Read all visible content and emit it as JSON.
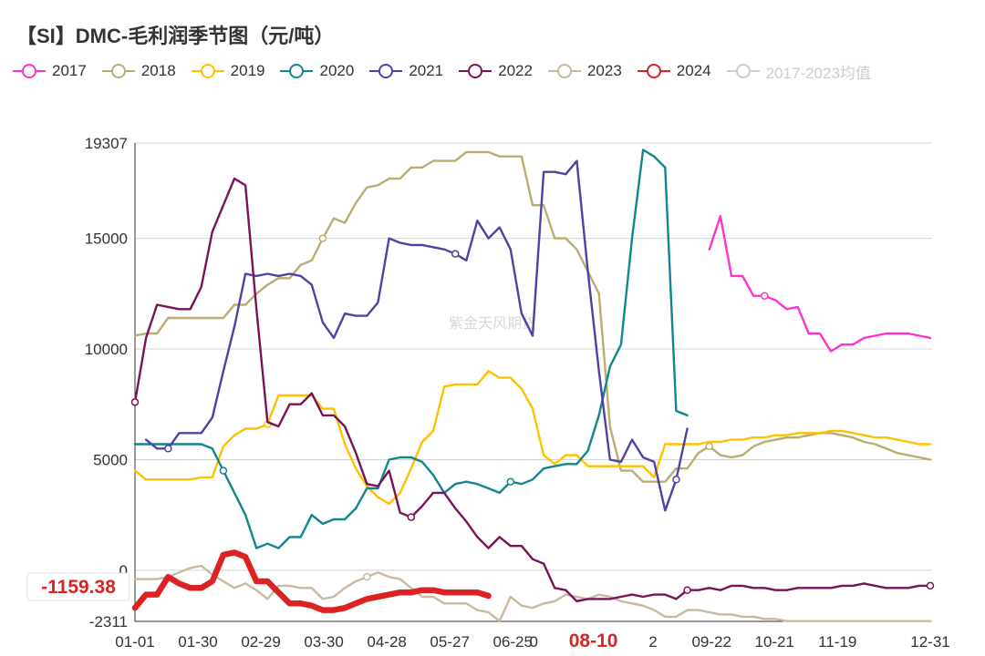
{
  "chart_data": {
    "type": "line",
    "title": "【SI】DMC-毛利润季节图（元/吨）",
    "xlabel": "",
    "ylabel": "",
    "ylim": [
      -2311,
      19307
    ],
    "y_ticks": [
      -2311,
      0,
      5000,
      10000,
      15000,
      19307
    ],
    "x_tick_labels": [
      "01-01",
      "01-30",
      "02-29",
      "03-30",
      "04-28",
      "05-27",
      "06-25",
      "0",
      "08-10",
      "2",
      "09-22",
      "10-21",
      "11-19",
      "12-31"
    ],
    "highlight_x_label": "08-10",
    "watermark": "紫金天风期货",
    "grid": true,
    "legend_position": "top",
    "current_value_label": "-1159.38",
    "series": [
      {
        "name": "2017",
        "color": "#ff33cc",
        "x": [
          52,
          53,
          54,
          55,
          56,
          57,
          58,
          59,
          60,
          61,
          62,
          63,
          64,
          65,
          66,
          67,
          68,
          69,
          70,
          71,
          72
        ],
        "values": [
          14500,
          16000,
          13300,
          13300,
          12400,
          12400,
          12200,
          11800,
          11900,
          10700,
          10700,
          9900,
          10200,
          10200,
          10500,
          10600,
          10700,
          10700,
          10700,
          10600,
          10500
        ]
      },
      {
        "name": "2018",
        "color": "#b9ae6f",
        "x": [
          0,
          1,
          2,
          3,
          4,
          5,
          6,
          7,
          8,
          9,
          10,
          11,
          12,
          13,
          14,
          15,
          16,
          17,
          18,
          19,
          20,
          21,
          22,
          23,
          24,
          25,
          26,
          27,
          28,
          29,
          30,
          31,
          32,
          33,
          34,
          35,
          36,
          37,
          38,
          39,
          40,
          41,
          42,
          43,
          44,
          45,
          46,
          47,
          48,
          49,
          50,
          51,
          52,
          53,
          54,
          55,
          56,
          57,
          58,
          59,
          60,
          61,
          62,
          63,
          64,
          65,
          66,
          67,
          68,
          69,
          70,
          71,
          72
        ],
        "values": [
          10600,
          10700,
          10700,
          11400,
          11400,
          11400,
          11400,
          11400,
          11400,
          12000,
          12000,
          12500,
          12900,
          13200,
          13200,
          13800,
          14000,
          15000,
          15900,
          15700,
          16600,
          17300,
          17400,
          17700,
          17700,
          18200,
          18200,
          18500,
          18500,
          18500,
          18900,
          18900,
          18900,
          18700,
          18700,
          18700,
          16500,
          16500,
          15000,
          15000,
          14500,
          13500,
          12500,
          6500,
          4500,
          4500,
          4000,
          4000,
          4000,
          4600,
          4600,
          5300,
          5600,
          5200,
          5100,
          5200,
          5600,
          5800,
          5900,
          6000,
          6000,
          6100,
          6200,
          6200,
          6100,
          6000,
          5800,
          5700,
          5500,
          5300,
          5200,
          5100,
          5000
        ]
      },
      {
        "name": "2019",
        "color": "#ffc000",
        "x": [
          0,
          1,
          2,
          3,
          4,
          5,
          6,
          7,
          8,
          9,
          10,
          11,
          12,
          13,
          14,
          15,
          16,
          17,
          18,
          19,
          20,
          21,
          22,
          23,
          24,
          25,
          26,
          27,
          28,
          29,
          30,
          31,
          32,
          33,
          34,
          35,
          36,
          37,
          38,
          39,
          40,
          41,
          42,
          43,
          44,
          45,
          46,
          47,
          48,
          49,
          50,
          51,
          52,
          53,
          54,
          55,
          56,
          57,
          58,
          59,
          60,
          61,
          62,
          63,
          64,
          65,
          66,
          67,
          68,
          69,
          70,
          71,
          72
        ],
        "values": [
          4500,
          4100,
          4100,
          4100,
          4100,
          4100,
          4200,
          4200,
          5600,
          6100,
          6400,
          6400,
          6600,
          7900,
          7900,
          7900,
          7900,
          7300,
          7300,
          5700,
          4600,
          3800,
          3300,
          3000,
          3500,
          4600,
          5800,
          6300,
          8300,
          8400,
          8400,
          8400,
          9000,
          8700,
          8700,
          8200,
          7300,
          5200,
          4800,
          5200,
          5200,
          4700,
          4700,
          4700,
          4700,
          4700,
          4700,
          4200,
          5700,
          5700,
          5700,
          5700,
          5800,
          5800,
          5900,
          5900,
          6000,
          6000,
          6100,
          6100,
          6200,
          6200,
          6200,
          6300,
          6300,
          6200,
          6100,
          6000,
          6000,
          5900,
          5800,
          5700,
          5700
        ]
      },
      {
        "name": "2020",
        "color": "#11868d",
        "x": [
          0,
          1,
          2,
          3,
          4,
          5,
          6,
          7,
          8,
          9,
          10,
          11,
          12,
          13,
          14,
          15,
          16,
          17,
          18,
          19,
          20,
          21,
          22,
          23,
          24,
          25,
          26,
          27,
          28,
          29,
          30,
          31,
          32,
          33,
          34,
          35,
          36,
          37,
          38,
          39,
          40,
          41,
          42,
          43,
          44,
          45,
          46,
          47,
          48,
          49,
          50
        ],
        "values": [
          5700,
          5700,
          5700,
          5700,
          5700,
          5700,
          5700,
          5500,
          4500,
          3500,
          2500,
          1000,
          1200,
          1000,
          1500,
          1500,
          2500,
          2100,
          2300,
          2300,
          2800,
          3700,
          3700,
          5000,
          5100,
          5100,
          4900,
          4300,
          3500,
          3900,
          4000,
          3900,
          3700,
          3500,
          4000,
          3900,
          4100,
          4600,
          4700,
          4800,
          4800,
          5400,
          7000,
          9200,
          10200,
          15000,
          19000,
          18700,
          18200,
          7200,
          7000
        ]
      },
      {
        "name": "2021",
        "color": "#5141a5",
        "x": [
          1,
          2,
          3,
          4,
          5,
          6,
          7,
          8,
          9,
          10,
          11,
          12,
          13,
          14,
          15,
          16,
          17,
          18,
          19,
          20,
          21,
          22,
          23,
          24,
          25,
          26,
          27,
          28,
          29,
          30,
          31,
          32,
          33,
          34,
          35,
          36,
          37,
          38,
          39,
          40,
          41,
          42,
          43,
          44,
          45,
          46,
          47,
          48,
          49,
          50
        ],
        "values": [
          5900,
          5500,
          5500,
          6200,
          6200,
          6200,
          6900,
          9000,
          11000,
          13400,
          13300,
          13400,
          13300,
          13400,
          13300,
          12900,
          11200,
          10500,
          11600,
          11500,
          11500,
          12100,
          15000,
          14800,
          14700,
          14700,
          14600,
          14500,
          14300,
          14000,
          15800,
          15000,
          15500,
          14500,
          11600,
          10600,
          18000,
          18000,
          17900,
          18500,
          13500,
          9000,
          5000,
          4900,
          5900,
          5100,
          4900,
          2700,
          4100,
          6400
        ]
      },
      {
        "name": "2022",
        "color": "#7a1257",
        "x": [
          0,
          1,
          2,
          3,
          4,
          5,
          6,
          7,
          8,
          9,
          10,
          11,
          12,
          13,
          14,
          15,
          16,
          17,
          18,
          19,
          20,
          21,
          22,
          23,
          24,
          25,
          26,
          27,
          28,
          29,
          30,
          31,
          32,
          33,
          34,
          35,
          36,
          37,
          38,
          39,
          40,
          41,
          42,
          43,
          44,
          45,
          46,
          47,
          48,
          49,
          50,
          51,
          52,
          53,
          54,
          55,
          56,
          57,
          58,
          59,
          60,
          61,
          62,
          63,
          64,
          65,
          66,
          67,
          68,
          69,
          70,
          71,
          72
        ],
        "values": [
          7600,
          10500,
          12000,
          11900,
          11800,
          11800,
          12800,
          15300,
          16500,
          17700,
          17400,
          11800,
          6700,
          6500,
          7500,
          7500,
          8000,
          7000,
          7000,
          6500,
          5300,
          3900,
          3800,
          4500,
          2600,
          2400,
          2900,
          3500,
          3500,
          2800,
          2200,
          1500,
          1000,
          1500,
          1100,
          1100,
          500,
          300,
          -800,
          -900,
          -1400,
          -1300,
          -1300,
          -1300,
          -1200,
          -1100,
          -1200,
          -1100,
          -1100,
          -1300,
          -900,
          -900,
          -800,
          -900,
          -700,
          -700,
          -800,
          -800,
          -900,
          -900,
          -800,
          -800,
          -800,
          -800,
          -700,
          -700,
          -600,
          -700,
          -800,
          -800,
          -800,
          -700,
          -700
        ]
      },
      {
        "name": "2023",
        "color": "#c9b9a0",
        "x": [
          0,
          1,
          2,
          3,
          4,
          5,
          6,
          7,
          8,
          9,
          10,
          11,
          12,
          13,
          14,
          15,
          16,
          17,
          18,
          19,
          20,
          21,
          22,
          23,
          24,
          25,
          26,
          27,
          28,
          29,
          30,
          31,
          32,
          33,
          34,
          35,
          36,
          37,
          38,
          39,
          40,
          41,
          42,
          43,
          44,
          45,
          46,
          47,
          48,
          49,
          50,
          51,
          52,
          53,
          54,
          55,
          56,
          57,
          58,
          59,
          60,
          61,
          62,
          63,
          64,
          65,
          66,
          67,
          68,
          69,
          70,
          71,
          72
        ],
        "values": [
          -400,
          -400,
          -400,
          -300,
          -100,
          100,
          200,
          -200,
          -500,
          -800,
          -600,
          -900,
          -1300,
          -700,
          -700,
          -800,
          -800,
          -1300,
          -1200,
          -800,
          -500,
          -300,
          -100,
          -300,
          -400,
          -800,
          -1200,
          -1200,
          -1500,
          -1500,
          -1500,
          -1800,
          -1900,
          -2300,
          -1200,
          -1600,
          -1700,
          -1500,
          -1400,
          -1100,
          -1200,
          -1300,
          -1100,
          -1200,
          -1400,
          -1500,
          -1600,
          -1800,
          -2100,
          -2100,
          -1800,
          -1800,
          -1900,
          -2000,
          -2000,
          -2100,
          -2100,
          -2200,
          -2200,
          -2300,
          -2300,
          -2300,
          -2300,
          -2300,
          -2300,
          -2300,
          -2300,
          -2300,
          -2300,
          -2300,
          -2300,
          -2300,
          -2300
        ]
      },
      {
        "name": "2024",
        "color": "#dc2323",
        "x": [
          0,
          1,
          2,
          3,
          4,
          5,
          6,
          7,
          8,
          9,
          10,
          11,
          12,
          13,
          14,
          15,
          16,
          17,
          18,
          19,
          20,
          21,
          22,
          23,
          24,
          25,
          26,
          27,
          28,
          29,
          30,
          31,
          32
        ],
        "values": [
          -1700,
          -1100,
          -1100,
          -300,
          -600,
          -800,
          -800,
          -500,
          700,
          800,
          600,
          -500,
          -500,
          -1000,
          -1500,
          -1500,
          -1600,
          -1800,
          -1800,
          -1700,
          -1500,
          -1300,
          -1200,
          -1100,
          -1000,
          -1000,
          -900,
          -900,
          -1000,
          -1000,
          -1000,
          -1000,
          -1159.38
        ]
      },
      {
        "name": "2017-2023均值",
        "color": "#cccccc",
        "x": [],
        "values": []
      }
    ]
  }
}
